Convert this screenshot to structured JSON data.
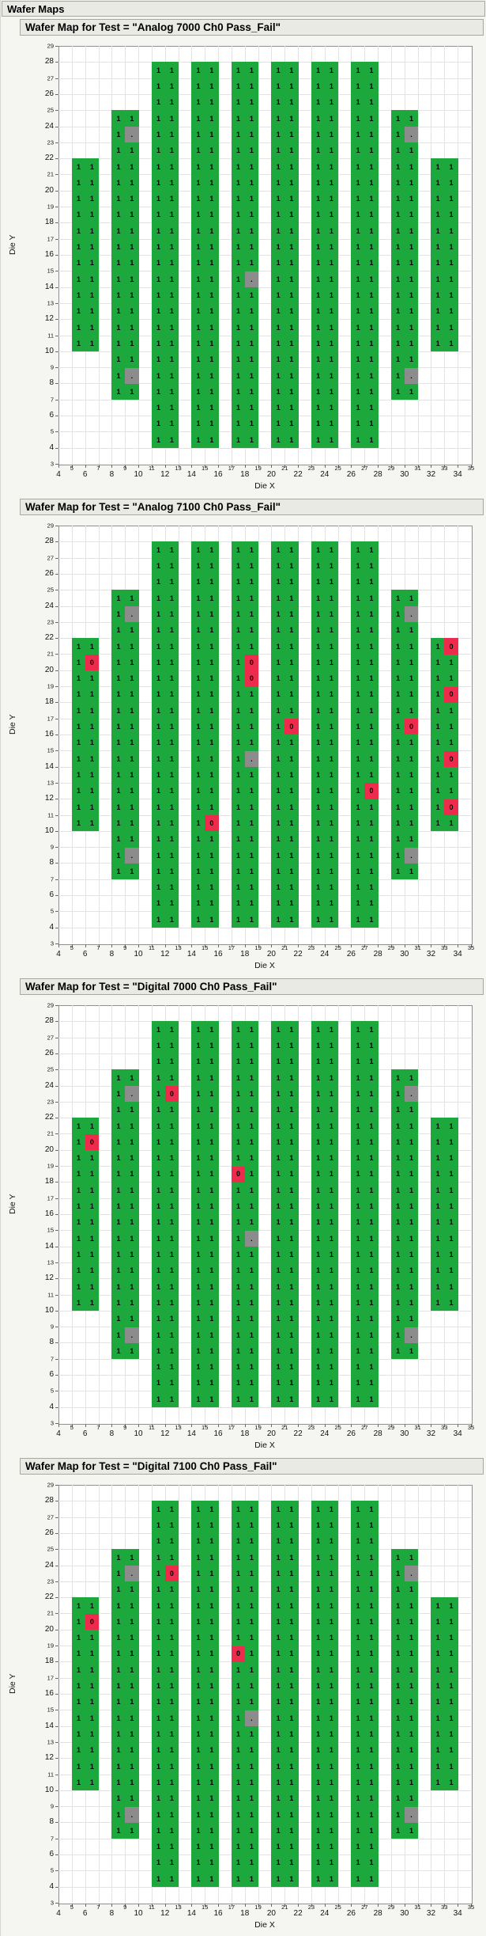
{
  "header": {
    "title": "Wafer Maps"
  },
  "axis": {
    "x_title": "Die X",
    "y_title": "Die Y"
  },
  "chart_data": {
    "type": "heatmap",
    "subtype": "wafer-map",
    "xlabel": "Die X",
    "ylabel": "Die Y",
    "x_range": [
      4,
      35
    ],
    "y_range": [
      3,
      29
    ],
    "x_ticks": [
      4,
      5,
      6,
      7,
      8,
      9,
      10,
      11,
      12,
      13,
      14,
      15,
      16,
      17,
      18,
      19,
      20,
      21,
      22,
      23,
      24,
      25,
      26,
      27,
      28,
      29,
      30,
      31,
      32,
      33,
      34,
      35
    ],
    "y_ticks": [
      3,
      4,
      5,
      6,
      7,
      8,
      9,
      10,
      11,
      12,
      13,
      14,
      15,
      16,
      17,
      18,
      19,
      20,
      21,
      22,
      23,
      24,
      25,
      26,
      27,
      28,
      29
    ],
    "grid": true,
    "cell_values": {
      "pass": "1",
      "fail": "0",
      "missing": "."
    },
    "colors": {
      "pass": "#1ca83c",
      "fail": "#ed2b4c",
      "missing": "#8c8c8c",
      "gridline": "#e3e3e3",
      "plot_bg": "#ffffff"
    },
    "column_pairs": [
      {
        "x": 5,
        "y_from": 10,
        "y_to": 21
      },
      {
        "x": 8,
        "y_from": 7,
        "y_to": 24
      },
      {
        "x": 11,
        "y_from": 4,
        "y_to": 27
      },
      {
        "x": 14,
        "y_from": 4,
        "y_to": 27
      },
      {
        "x": 17,
        "y_from": 4,
        "y_to": 27
      },
      {
        "x": 20,
        "y_from": 4,
        "y_to": 27
      },
      {
        "x": 23,
        "y_from": 4,
        "y_to": 27
      },
      {
        "x": 26,
        "y_from": 4,
        "y_to": 27
      },
      {
        "x": 29,
        "y_from": 7,
        "y_to": 24
      },
      {
        "x": 32,
        "y_from": 10,
        "y_to": 21
      }
    ],
    "charts": [
      {
        "title": "Wafer Map for Test = \"Analog 7000 Ch0 Pass_Fail\"",
        "fail_cells": [],
        "missing_cells": [
          [
            9,
            23
          ],
          [
            9,
            8
          ],
          [
            18,
            14
          ],
          [
            30,
            23
          ],
          [
            30,
            8
          ]
        ]
      },
      {
        "title": "Wafer Map for Test = \"Analog 7100 Ch0 Pass_Fail\"",
        "fail_cells": [
          [
            6,
            20
          ],
          [
            15,
            10
          ],
          [
            18,
            20
          ],
          [
            18,
            19
          ],
          [
            21,
            16
          ],
          [
            27,
            12
          ],
          [
            30,
            16
          ],
          [
            33,
            21
          ],
          [
            33,
            18
          ],
          [
            33,
            14
          ],
          [
            33,
            11
          ]
        ],
        "missing_cells": [
          [
            9,
            23
          ],
          [
            9,
            8
          ],
          [
            18,
            14
          ],
          [
            30,
            23
          ],
          [
            30,
            8
          ]
        ]
      },
      {
        "title": "Wafer Map for Test = \"Digital 7000 Ch0 Pass_Fail\"",
        "fail_cells": [
          [
            6,
            20
          ],
          [
            12,
            23
          ],
          [
            17,
            18
          ]
        ],
        "missing_cells": [
          [
            9,
            23
          ],
          [
            9,
            8
          ],
          [
            18,
            14
          ],
          [
            30,
            23
          ],
          [
            30,
            8
          ]
        ]
      },
      {
        "title": "Wafer Map for Test = \"Digital 7100 Ch0 Pass_Fail\"",
        "fail_cells": [
          [
            6,
            20
          ],
          [
            12,
            23
          ],
          [
            17,
            18
          ]
        ],
        "missing_cells": [
          [
            9,
            23
          ],
          [
            9,
            8
          ],
          [
            18,
            14
          ],
          [
            30,
            23
          ],
          [
            30,
            8
          ]
        ]
      }
    ]
  }
}
